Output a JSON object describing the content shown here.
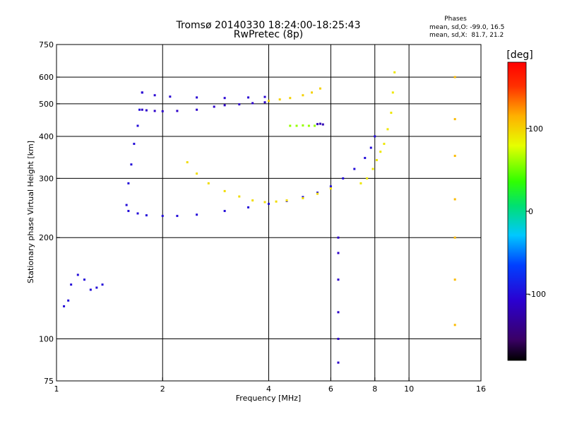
{
  "title": {
    "line1": "Tromsø 20140330 18:24:00-18:25:43",
    "line2": "RwPretec (8p)"
  },
  "phases_info": {
    "heading": "Phases",
    "line_o": "mean, sd,O: -99.0, 16.5",
    "line_x": "mean, sd,X:  81.7, 21.2"
  },
  "colorbar": {
    "unit_label": "[deg]",
    "ticks": [
      {
        "value": 100,
        "label": "100"
      },
      {
        "value": 0,
        "label": "0"
      },
      {
        "value": -100,
        "label": "-100"
      }
    ],
    "range": [
      -180,
      180
    ]
  },
  "chart_data": {
    "type": "scatter",
    "title": "Tromsø 20140330 18:24:00-18:25:43",
    "subtitle": "RwPretec (8p)",
    "xlabel": "Frequency [MHz]",
    "ylabel": "Stationary phase Virtual Height [km]",
    "x_scale": "log",
    "y_scale": "log",
    "xlim": [
      1,
      16
    ],
    "ylim": [
      75,
      750
    ],
    "x_ticks": [
      {
        "value": 1,
        "label": "1"
      },
      {
        "value": 2,
        "label": "2"
      },
      {
        "value": 4,
        "label": "4"
      },
      {
        "value": 6,
        "label": "6"
      },
      {
        "value": 8,
        "label": "8"
      },
      {
        "value": 10,
        "label": "10"
      },
      {
        "value": 16,
        "label": "16"
      }
    ],
    "y_ticks": [
      {
        "value": 75,
        "label": "75"
      },
      {
        "value": 100,
        "label": "100"
      },
      {
        "value": 200,
        "label": "200"
      },
      {
        "value": 300,
        "label": "300"
      },
      {
        "value": 400,
        "label": "400"
      },
      {
        "value": 500,
        "label": "500"
      },
      {
        "value": 600,
        "label": "600"
      },
      {
        "value": 750,
        "label": "750"
      }
    ],
    "x_gridlines": [
      2,
      4,
      6,
      8,
      10
    ],
    "y_gridlines": [
      100,
      200,
      300,
      400,
      500,
      600
    ],
    "grid": true,
    "color_scale": "rainbow phase [deg], -180 to 180",
    "traces": [
      {
        "x": [
          1.6,
          1.7,
          1.8,
          2.0,
          2.2,
          2.5,
          3.0,
          3.5,
          4.0,
          4.5,
          5.0,
          5.5,
          6.0,
          6.5,
          7.0,
          7.5,
          7.8,
          8.0
        ],
        "y": [
          240,
          236,
          233,
          232,
          232,
          234,
          240,
          246,
          252,
          257,
          264,
          272,
          284,
          300,
          320,
          345,
          370,
          400
        ],
        "phase": -100
      },
      {
        "x": [
          1.58,
          1.6,
          1.63,
          1.66,
          1.7,
          1.72,
          1.75
        ],
        "y": [
          250,
          290,
          330,
          380,
          430,
          480,
          540
        ],
        "phase": -100
      },
      {
        "x": [
          1.75,
          1.8,
          1.9,
          2.0,
          2.2,
          2.5,
          2.8,
          3.0,
          3.3,
          3.6,
          3.9
        ],
        "y": [
          480,
          478,
          476,
          475,
          476,
          480,
          490,
          495,
          498,
          502,
          505
        ],
        "phase": -110
      },
      {
        "x": [
          1.75,
          1.9,
          2.1,
          2.5,
          3.0,
          3.5,
          3.9
        ],
        "y": [
          540,
          530,
          525,
          522,
          520,
          522,
          524
        ],
        "phase": -105
      },
      {
        "x": [
          4.0,
          4.3,
          4.6,
          5.0,
          5.3,
          5.6
        ],
        "y": [
          510,
          515,
          520,
          530,
          540,
          555
        ],
        "phase": 100
      },
      {
        "x": [
          2.35,
          2.5,
          2.7,
          3.0,
          3.3,
          3.6,
          3.9,
          4.2,
          4.5,
          5.0,
          5.5,
          6.0
        ],
        "y": [
          335,
          310,
          290,
          275,
          265,
          258,
          255,
          256,
          258,
          262,
          270,
          280
        ],
        "phase": 95
      },
      {
        "x": [
          7.3,
          7.6,
          7.9,
          8.1,
          8.3,
          8.5,
          8.7,
          8.9,
          9.0,
          9.1
        ],
        "y": [
          290,
          300,
          320,
          340,
          360,
          380,
          420,
          470,
          540,
          620
        ],
        "phase": 90
      },
      {
        "x": [
          4.6,
          4.8,
          5.0,
          5.2,
          5.4
        ],
        "y": [
          430,
          430,
          431,
          430,
          430
        ],
        "phase": 60
      },
      {
        "x": [
          5.5,
          5.6,
          5.7
        ],
        "y": [
          435,
          436,
          434
        ],
        "phase": -120
      },
      {
        "x": [
          1.05,
          1.08,
          1.1,
          1.15,
          1.2,
          1.25,
          1.3,
          1.35
        ],
        "y": [
          125,
          130,
          145,
          155,
          150,
          140,
          142,
          145
        ],
        "phase": -100
      },
      {
        "x": [
          6.3,
          6.3,
          6.3,
          6.3,
          6.3,
          6.3
        ],
        "y": [
          85,
          100,
          120,
          150,
          180,
          200
        ],
        "phase": -110
      },
      {
        "x": [
          13.5,
          13.5,
          13.5,
          13.5,
          13.5,
          13.5,
          13.5
        ],
        "y": [
          110,
          150,
          200,
          260,
          350,
          450,
          600
        ],
        "phase": 110
      }
    ]
  }
}
